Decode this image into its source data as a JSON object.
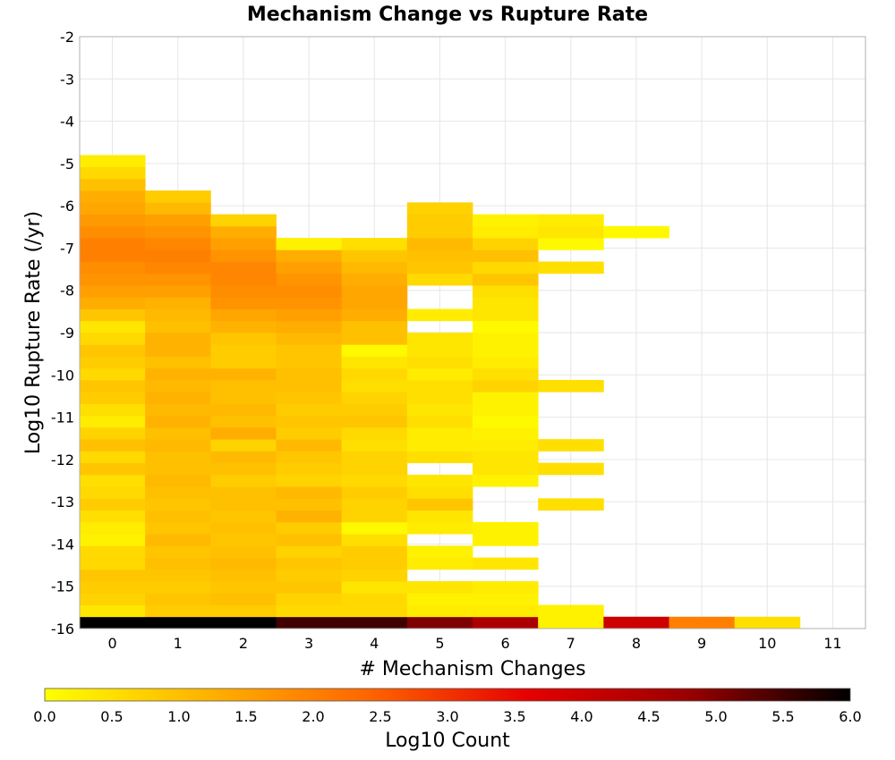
{
  "chart_data": {
    "type": "heatmap",
    "title": "Mechanism Change vs Rupture Rate",
    "xlabel": "# Mechanism Changes",
    "ylabel": "Log10 Rupture Rate (/yr)",
    "colorbar_label": "Log10 Count",
    "xlim": [
      -0.5,
      11.5
    ],
    "ylim": [
      -16,
      -2
    ],
    "x_ticks": [
      "0",
      "1",
      "2",
      "3",
      "4",
      "5",
      "6",
      "7",
      "8",
      "9",
      "10",
      "11"
    ],
    "y_ticks": [
      "-2",
      "-3",
      "-4",
      "-5",
      "-6",
      "-7",
      "-8",
      "-9",
      "-10",
      "-11",
      "-12",
      "-13",
      "-14",
      "-15",
      "-16"
    ],
    "colorbar_ticks": [
      "0.0",
      "0.5",
      "1.0",
      "1.5",
      "2.0",
      "2.5",
      "3.0",
      "3.5",
      "4.0",
      "4.5",
      "5.0",
      "5.5",
      "6.0"
    ],
    "colorbar_range": [
      0,
      6
    ],
    "colormap": [
      "#ffff00",
      "#ffb300",
      "#ff6600",
      "#e60000",
      "#990000",
      "#000000"
    ],
    "grid": true,
    "y_bin_width": 0.28,
    "columns": [
      {
        "x": 0,
        "y_bottom": -16,
        "values": [
          6.0,
          0.4,
          0.7,
          0.8,
          0.9,
          0.6,
          0.6,
          0.2,
          0.3,
          0.5,
          0.8,
          0.6,
          0.5,
          0.9,
          0.6,
          1.0,
          0.7,
          0.3,
          0.5,
          0.8,
          0.9,
          0.6,
          0.8,
          0.9,
          0.6,
          0.4,
          0.9,
          1.3,
          1.5,
          1.7,
          1.8,
          2.0,
          2.0,
          1.8,
          1.6,
          1.4,
          1.3,
          1.0,
          0.6,
          0.3
        ]
      },
      {
        "x": 1,
        "y_bottom": -16,
        "values": [
          6.0,
          0.8,
          0.9,
          0.8,
          0.9,
          1.0,
          0.9,
          1.1,
          0.9,
          1.0,
          0.9,
          1.0,
          1.1,
          1.0,
          1.0,
          1.1,
          1.0,
          1.2,
          1.1,
          1.2,
          1.1,
          1.2,
          1.0,
          1.2,
          1.2,
          1.0,
          1.1,
          1.2,
          1.5,
          1.7,
          1.9,
          2.0,
          1.9,
          1.7,
          1.5,
          1.1,
          0.8
        ]
      },
      {
        "x": 2,
        "y_bottom": -16,
        "values": [
          6.0,
          0.8,
          1.0,
          0.9,
          1.0,
          1.1,
          1.0,
          0.9,
          1.0,
          0.9,
          1.0,
          1.0,
          0.8,
          1.0,
          1.1,
          0.7,
          1.3,
          1.0,
          1.1,
          1.0,
          1.0,
          1.2,
          0.8,
          0.8,
          0.9,
          1.2,
          1.4,
          1.7,
          1.8,
          1.9,
          1.9,
          1.7,
          1.5,
          1.3,
          0.7
        ]
      },
      {
        "x": 3,
        "y_bottom": -16,
        "values": [
          5.5,
          0.6,
          0.7,
          0.9,
          0.8,
          0.9,
          0.7,
          1.0,
          0.8,
          1.2,
          1.0,
          1.1,
          0.7,
          0.8,
          0.9,
          1.1,
          0.8,
          0.9,
          0.8,
          0.9,
          1.0,
          1.0,
          0.9,
          0.9,
          1.1,
          1.3,
          1.5,
          1.7,
          1.8,
          1.7,
          1.5,
          1.3,
          0.2
        ]
      },
      {
        "x": 4,
        "y_bottom": -16,
        "values": [
          5.5,
          0.6,
          0.6,
          0.4,
          0.7,
          0.8,
          0.8,
          0.5,
          0.1,
          0.7,
          0.7,
          0.8,
          0.6,
          0.7,
          0.7,
          0.5,
          0.6,
          0.9,
          0.8,
          0.7,
          0.5,
          0.6,
          0.4,
          0.1,
          1.0,
          1.0,
          1.3,
          1.4,
          1.4,
          1.3,
          1.1,
          0.9,
          0.5
        ]
      },
      {
        "x": 5,
        "y_bottom": -16,
        "values": [
          5.0,
          0.3,
          0.2,
          0.4,
          null,
          0.3,
          0.2,
          null,
          0.3,
          0.4,
          0.9,
          0.5,
          0.4,
          null,
          0.5,
          0.3,
          0.3,
          0.5,
          0.4,
          0.5,
          0.5,
          0.3,
          0.5,
          0.4,
          0.4,
          null,
          0.3,
          null,
          null,
          0.6,
          0.9,
          1.0,
          1.1,
          0.8,
          0.8,
          0.7
        ]
      },
      {
        "x": 6,
        "y_bottom": -16,
        "values": [
          4.5,
          0.3,
          0.2,
          0.3,
          null,
          0.4,
          null,
          0.2,
          0.2,
          null,
          null,
          null,
          0.2,
          0.4,
          0.4,
          0.3,
          0.2,
          0.1,
          0.2,
          0.2,
          0.7,
          0.5,
          0.3,
          0.2,
          0.2,
          0.1,
          0.4,
          0.4,
          0.5,
          0.9,
          0.6,
          1.0,
          0.7,
          0.3,
          0.2
        ]
      },
      {
        "x": 7,
        "y_bottom": -16,
        "values": [
          0.2,
          0.2,
          null,
          null,
          null,
          null,
          null,
          null,
          null,
          null,
          0.5,
          null,
          null,
          0.5,
          null,
          0.5,
          null,
          null,
          null,
          null,
          0.5,
          null,
          null,
          null,
          null,
          null,
          null,
          null,
          null,
          null,
          0.5,
          null,
          0.1,
          0.4,
          0.3
        ]
      },
      {
        "x": 8,
        "y_bottom": -16,
        "values": [
          4.0,
          null,
          null,
          null,
          null,
          null,
          null,
          null,
          null,
          null,
          null,
          null,
          null,
          null,
          null,
          null,
          null,
          null,
          null,
          null,
          null,
          null,
          null,
          null,
          null,
          null,
          null,
          null,
          null,
          null,
          null,
          null,
          null,
          0.1
        ]
      },
      {
        "x": 9,
        "y_bottom": -16,
        "values": [
          2.0
        ]
      },
      {
        "x": 10,
        "y_bottom": -16,
        "values": [
          0.5
        ]
      }
    ]
  }
}
